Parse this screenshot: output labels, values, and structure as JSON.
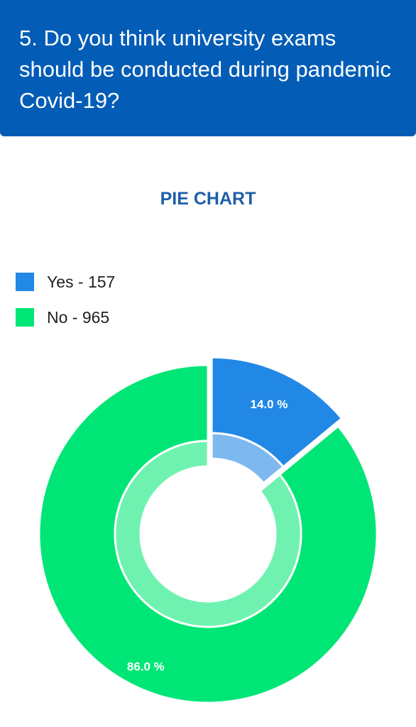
{
  "header": {
    "question": "5. Do you think university exams should be conducted during pandemic Covid-19?"
  },
  "chart_title": "PIE CHART",
  "chart_data": {
    "type": "pie",
    "style": "donut",
    "title": "PIE CHART",
    "legend_position": "top-left",
    "slices": [
      {
        "key": "yes",
        "legend_label": "Yes - 157",
        "value": 157,
        "percent_label": "14.0 %",
        "color": "#2288e5",
        "inner_color": "#7db8f0",
        "exploded": true
      },
      {
        "key": "no",
        "legend_label": "No - 965",
        "value": 965,
        "percent_label": "86.0 %",
        "color": "#00e676",
        "inner_color": "#6ff2b0",
        "exploded": false
      }
    ]
  },
  "colors": {
    "header_bg": "#035db6",
    "title_text": "#1f5ea8"
  }
}
